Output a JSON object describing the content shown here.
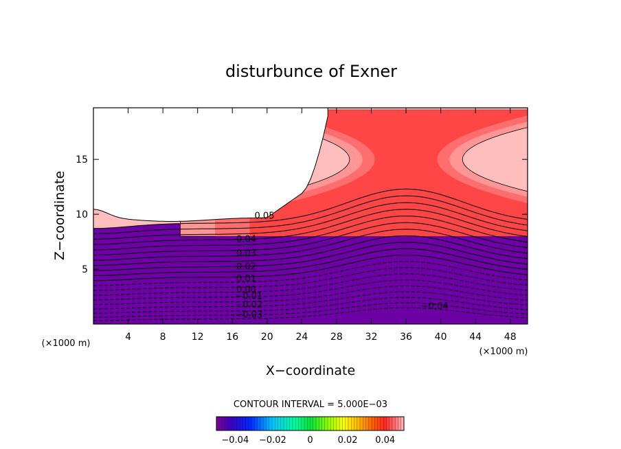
{
  "chart_data": {
    "type": "contour",
    "title": "disturbunce of Exner",
    "xlabel": "X−coordinate",
    "ylabel": "Z−coordinate",
    "x_unit_left": "(×1000 m)",
    "x_unit_right": "(×1000 m)",
    "xlim": [
      0,
      50
    ],
    "ylim": [
      0,
      19.7
    ],
    "x_ticks": [
      4,
      8,
      12,
      16,
      20,
      24,
      28,
      32,
      36,
      40,
      44,
      48
    ],
    "y_ticks": [
      5,
      10,
      15
    ],
    "contour_interval_text": "CONTOUR INTERVAL = 5.000E−03",
    "contour_interval": 0.005,
    "value_min": -0.05,
    "value_max": 0.05,
    "contour_labels": [
      {
        "text": "0.05",
        "x": 19.7,
        "z": 9.9
      },
      {
        "text": "0.04",
        "x": 17.6,
        "z": 7.8
      },
      {
        "text": "0.03",
        "x": 17.6,
        "z": 6.5
      },
      {
        "text": "0.02",
        "x": 17.6,
        "z": 5.3
      },
      {
        "text": "0.01",
        "x": 17.6,
        "z": 4.2
      },
      {
        "text": "0.00",
        "x": 17.6,
        "z": 3.2
      },
      {
        "text": "−0.01",
        "x": 17.9,
        "z": 2.6
      },
      {
        "text": "−0.02",
        "x": 17.9,
        "z": 1.8
      },
      {
        "text": "−0.03",
        "x": 17.9,
        "z": 0.9
      },
      {
        "text": "−0.04",
        "x": 39.3,
        "z": 1.7
      }
    ],
    "colorbar": {
      "ticks": [
        {
          "label": "−0.04",
          "value": -0.04
        },
        {
          "label": "−0.02",
          "value": -0.02
        },
        {
          "label": "0",
          "value": 0
        },
        {
          "label": "0.02",
          "value": 0.02
        },
        {
          "label": "0.04",
          "value": 0.04
        }
      ]
    }
  }
}
